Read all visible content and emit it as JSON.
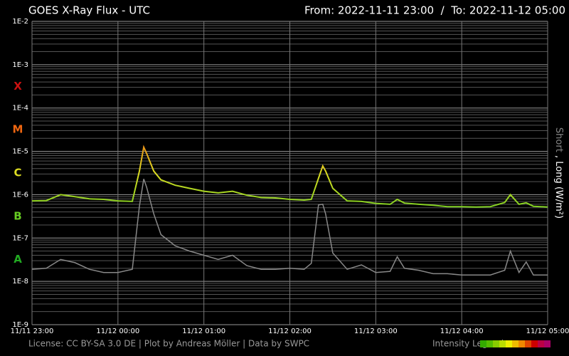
{
  "chart_data": {
    "type": "line",
    "title": "GOES X-Ray Flux - UTC",
    "subtitle": "From: 2022-11-11 23:00  /  To: 2022-11-12 05:00",
    "footer": "License: CC BY-SA 3.0 DE | Plot by Andreas Möller | Data by SWPC",
    "legend_title": "Intensity Legend",
    "label_separator": ",",
    "log_scale": true,
    "grid": true,
    "background": "#000000",
    "ylim": [
      1e-09,
      0.01
    ],
    "yticks": [
      {
        "value": 1e-09,
        "label": "1E-9"
      },
      {
        "value": 1e-08,
        "label": "1E-8"
      },
      {
        "value": 1e-07,
        "label": "1E-7"
      },
      {
        "value": 1e-06,
        "label": "1E-6"
      },
      {
        "value": 1e-05,
        "label": "1E-5"
      },
      {
        "value": 0.0001,
        "label": "1E-4"
      },
      {
        "value": 0.001,
        "label": "1E-3"
      },
      {
        "value": 0.01,
        "label": "1E-2"
      }
    ],
    "xlim": [
      "2022-11-11 23:00",
      "2022-11-12 05:00"
    ],
    "xticks": [
      {
        "value": "2022-11-11 23:00",
        "label": "11/11 23:00"
      },
      {
        "value": "2022-11-12 00:00",
        "label": "11/12 00:00"
      },
      {
        "value": "2022-11-12 01:00",
        "label": "11/12 01:00"
      },
      {
        "value": "2022-11-12 02:00",
        "label": "11/12 02:00"
      },
      {
        "value": "2022-11-12 03:00",
        "label": "11/12 03:00"
      },
      {
        "value": "2022-11-12 04:00",
        "label": "11/12 04:00"
      },
      {
        "value": "2022-11-12 05:00",
        "label": "11/12 05:00"
      }
    ],
    "flare_classes": [
      {
        "label": "A",
        "value": 1e-08,
        "color": "#22aa22"
      },
      {
        "label": "B",
        "value": 1e-07,
        "color": "#66cc22"
      },
      {
        "label": "C",
        "value": 1e-06,
        "color": "#dddd22"
      },
      {
        "label": "M",
        "value": 1e-05,
        "color": "#ee6611"
      },
      {
        "label": "X",
        "value": 0.0001,
        "color": "#cc1111"
      }
    ],
    "intensity_colors": [
      "#33aa00",
      "#55bb00",
      "#88cc00",
      "#bbdd00",
      "#eeee00",
      "#eebb00",
      "#ee8800",
      "#dd4400",
      "#cc0000",
      "#bb0044",
      "#aa0066"
    ],
    "x": [
      "2022-11-11 23:00",
      "2022-11-11 23:10",
      "2022-11-11 23:20",
      "2022-11-11 23:30",
      "2022-11-11 23:40",
      "2022-11-11 23:50",
      "2022-11-12 00:00",
      "2022-11-12 00:10",
      "2022-11-12 00:15",
      "2022-11-12 00:18",
      "2022-11-12 00:20",
      "2022-11-12 00:25",
      "2022-11-12 00:30",
      "2022-11-12 00:40",
      "2022-11-12 00:50",
      "2022-11-12 01:00",
      "2022-11-12 01:10",
      "2022-11-12 01:20",
      "2022-11-12 01:30",
      "2022-11-12 01:40",
      "2022-11-12 01:50",
      "2022-11-12 02:00",
      "2022-11-12 02:10",
      "2022-11-12 02:15",
      "2022-11-12 02:20",
      "2022-11-12 02:23",
      "2022-11-12 02:25",
      "2022-11-12 02:30",
      "2022-11-12 02:40",
      "2022-11-12 02:50",
      "2022-11-12 03:00",
      "2022-11-12 03:10",
      "2022-11-12 03:15",
      "2022-11-12 03:20",
      "2022-11-12 03:30",
      "2022-11-12 03:40",
      "2022-11-12 03:50",
      "2022-11-12 04:00",
      "2022-11-12 04:10",
      "2022-11-12 04:20",
      "2022-11-12 04:30",
      "2022-11-12 04:34",
      "2022-11-12 04:40",
      "2022-11-12 04:45",
      "2022-11-12 04:50",
      "2022-11-12 05:00"
    ],
    "series": [
      {
        "name": "Short",
        "color": "#888888",
        "values": [
          1.9e-08,
          2e-08,
          3.2e-08,
          2.7e-08,
          1.9e-08,
          1.6e-08,
          1.6e-08,
          1.9e-08,
          5.4e-07,
          2.3e-06,
          1.5e-06,
          3.6e-07,
          1.2e-07,
          6.6e-08,
          5e-08,
          4e-08,
          3.2e-08,
          4e-08,
          2.3e-08,
          1.9e-08,
          1.9e-08,
          2e-08,
          1.9e-08,
          2.6e-08,
          5.8e-07,
          6e-07,
          3.6e-07,
          4.5e-08,
          1.9e-08,
          2.4e-08,
          1.6e-08,
          1.7e-08,
          3.7e-08,
          2e-08,
          1.8e-08,
          1.5e-08,
          1.5e-08,
          1.4e-08,
          1.4e-08,
          1.4e-08,
          1.8e-08,
          5e-08,
          1.6e-08,
          2.8e-08,
          1.4e-08,
          1.4e-08
        ]
      },
      {
        "name": "Long (W/m²)",
        "color": "#aaee22",
        "values": [
          7.2e-07,
          7.3e-07,
          1e-06,
          9e-07,
          8e-07,
          7.8e-07,
          7.2e-07,
          7e-07,
          3.5e-06,
          1.25e-05,
          9e-06,
          3.5e-06,
          2.2e-06,
          1.65e-06,
          1.4e-06,
          1.2e-06,
          1.1e-06,
          1.2e-06,
          9.7e-07,
          8.6e-07,
          8.4e-07,
          7.8e-07,
          7.5e-07,
          7.8e-07,
          2.4e-06,
          4.6e-06,
          3.5e-06,
          1.4e-06,
          7.2e-07,
          7e-07,
          6.3e-07,
          6e-07,
          7.8e-07,
          6.4e-07,
          6e-07,
          5.7e-07,
          5.3e-07,
          5.3e-07,
          5.2e-07,
          5.3e-07,
          6.6e-07,
          1e-06,
          6e-07,
          6.5e-07,
          5.4e-07,
          5.2e-07
        ]
      }
    ]
  }
}
